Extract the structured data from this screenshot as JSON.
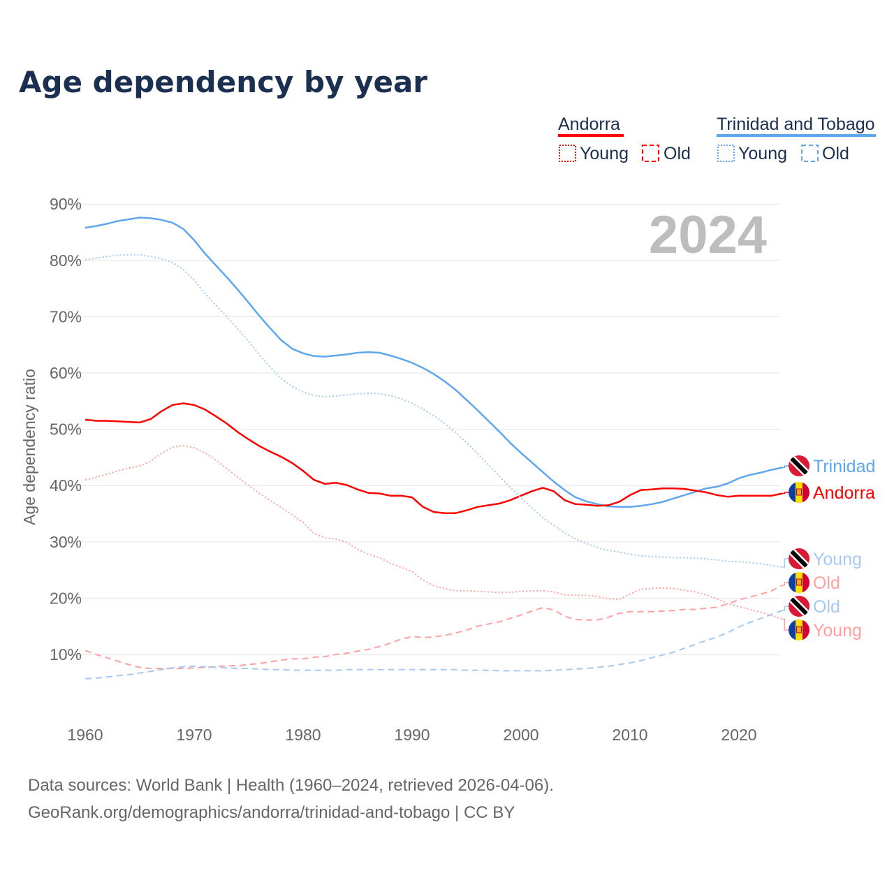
{
  "chart_data": {
    "type": "line",
    "title": "Age dependency by year",
    "ylabel": "Age dependency ratio",
    "xlabel": "",
    "xlim": [
      1960,
      2024
    ],
    "ylim": [
      0,
      90
    ],
    "x_ticks": [
      "1960",
      "1970",
      "1980",
      "1990",
      "2000",
      "2010",
      "2020"
    ],
    "y_ticks": [
      "10%",
      "20%",
      "30%",
      "40%",
      "50%",
      "60%",
      "70%",
      "80%",
      "90%"
    ],
    "y_tick_values": [
      10,
      20,
      30,
      40,
      50,
      60,
      70,
      80,
      90
    ],
    "grid": true,
    "year_watermark": "2024",
    "legend": {
      "placement": "top-right",
      "groups": [
        {
          "country": "Andorra",
          "color": "#ff0000",
          "young": "Young",
          "old": "Old"
        },
        {
          "country": "Trinidad and Tobago",
          "color": "#5fa6ec",
          "young": "Young",
          "old": "Old"
        }
      ]
    },
    "x_start": 1960,
    "series": [
      {
        "name": "Trinidad",
        "key": "tt_total",
        "style": "solid",
        "color": "#5fa6ec",
        "flag": "tt",
        "values": [
          85.8,
          86.1,
          86.5,
          87.0,
          87.3,
          87.6,
          87.5,
          87.2,
          86.7,
          85.6,
          83.6,
          81.2,
          79.1,
          77.0,
          74.8,
          72.5,
          70.1,
          67.9,
          65.8,
          64.3,
          63.5,
          63.0,
          62.9,
          63.1,
          63.3,
          63.6,
          63.7,
          63.6,
          63.1,
          62.5,
          61.8,
          60.9,
          59.8,
          58.5,
          57.0,
          55.2,
          53.4,
          51.5,
          49.6,
          47.6,
          45.8,
          44.1,
          42.4,
          40.7,
          39.2,
          37.9,
          37.2,
          36.7,
          36.3,
          36.2,
          36.2,
          36.4,
          36.7,
          37.1,
          37.7,
          38.3,
          38.9,
          39.5,
          39.8,
          40.4,
          41.3,
          41.9,
          42.3,
          42.8,
          43.2
        ]
      },
      {
        "name": "Andorra",
        "key": "ad_total",
        "style": "solid",
        "color": "#ff0000",
        "flag": "ad",
        "values": [
          51.7,
          51.5,
          51.5,
          51.4,
          51.3,
          51.2,
          51.8,
          53.2,
          54.3,
          54.6,
          54.3,
          53.5,
          52.3,
          51.0,
          49.5,
          48.2,
          47.0,
          46.0,
          45.1,
          44.0,
          42.6,
          41.0,
          40.3,
          40.5,
          40.1,
          39.3,
          38.7,
          38.6,
          38.2,
          38.2,
          37.9,
          36.2,
          35.3,
          35.1,
          35.1,
          35.6,
          36.2,
          36.5,
          36.8,
          37.4,
          38.2,
          39.0,
          39.6,
          39.0,
          37.4,
          36.7,
          36.6,
          36.4,
          36.5,
          37.1,
          38.3,
          39.2,
          39.3,
          39.5,
          39.5,
          39.4,
          39.1,
          38.8,
          38.3,
          38.0,
          38.2,
          38.2,
          38.2,
          38.2,
          38.6
        ]
      },
      {
        "name": "Young",
        "key": "tt_young",
        "style": "dotted",
        "color": "#a5c9f2",
        "flag": "tt",
        "values": [
          80.1,
          80.4,
          80.7,
          80.9,
          81.0,
          81.0,
          80.7,
          80.3,
          79.6,
          78.4,
          76.5,
          74.1,
          72.0,
          70.0,
          67.8,
          65.6,
          63.2,
          61.0,
          59.0,
          57.6,
          56.6,
          56.0,
          55.8,
          55.9,
          56.1,
          56.3,
          56.4,
          56.3,
          56.0,
          55.4,
          54.6,
          53.6,
          52.4,
          51.0,
          49.4,
          47.6,
          45.7,
          43.7,
          41.7,
          39.7,
          37.8,
          36.0,
          34.3,
          32.9,
          31.6,
          30.5,
          29.7,
          29.0,
          28.5,
          28.2,
          27.8,
          27.5,
          27.4,
          27.3,
          27.2,
          27.2,
          27.1,
          27.0,
          26.8,
          26.5,
          26.5,
          26.3,
          26.1,
          25.8,
          25.5
        ]
      },
      {
        "name": "Old",
        "key": "ad_old",
        "style": "dashed",
        "color": "#ffa0a0",
        "flag": "ad",
        "values": [
          10.7,
          10.0,
          9.4,
          8.8,
          8.2,
          7.7,
          7.5,
          7.5,
          7.5,
          7.5,
          7.6,
          7.7,
          7.8,
          8.0,
          8.0,
          8.2,
          8.4,
          8.7,
          9.0,
          9.2,
          9.2,
          9.5,
          9.6,
          10.0,
          10.2,
          10.6,
          10.9,
          11.4,
          12.0,
          12.7,
          13.2,
          13.0,
          13.1,
          13.4,
          13.8,
          14.3,
          15.0,
          15.4,
          15.8,
          16.4,
          17.0,
          17.7,
          18.3,
          17.9,
          16.8,
          16.2,
          16.1,
          16.1,
          16.6,
          17.3,
          17.6,
          17.6,
          17.6,
          17.7,
          17.8,
          18.0,
          18.0,
          18.2,
          18.4,
          19.0,
          19.7,
          20.2,
          20.7,
          21.3,
          22.3
        ]
      },
      {
        "name": "Old",
        "key": "tt_old",
        "style": "dashed",
        "color": "#a5c9f2",
        "flag": "tt",
        "values": [
          5.7,
          5.8,
          6.0,
          6.2,
          6.4,
          6.7,
          7.0,
          7.3,
          7.6,
          7.8,
          7.9,
          7.8,
          7.7,
          7.6,
          7.5,
          7.5,
          7.4,
          7.3,
          7.3,
          7.2,
          7.2,
          7.2,
          7.2,
          7.2,
          7.3,
          7.3,
          7.3,
          7.3,
          7.3,
          7.3,
          7.3,
          7.3,
          7.3,
          7.3,
          7.3,
          7.2,
          7.2,
          7.2,
          7.1,
          7.1,
          7.1,
          7.1,
          7.1,
          7.2,
          7.3,
          7.4,
          7.5,
          7.7,
          7.9,
          8.2,
          8.5,
          8.9,
          9.4,
          9.9,
          10.4,
          11.1,
          11.8,
          12.5,
          13.1,
          13.9,
          14.9,
          15.7,
          16.4,
          17.1,
          17.8
        ]
      },
      {
        "name": "Young",
        "key": "ad_young",
        "style": "dotted",
        "color": "#ffa0a0",
        "flag": "ad",
        "values": [
          41.0,
          41.5,
          42.0,
          42.6,
          43.1,
          43.5,
          44.3,
          45.7,
          46.8,
          47.1,
          46.7,
          45.8,
          44.5,
          43.0,
          41.5,
          40.0,
          38.6,
          37.3,
          36.1,
          34.8,
          33.4,
          31.5,
          30.7,
          30.5,
          29.9,
          28.7,
          27.8,
          27.2,
          26.2,
          25.5,
          24.7,
          23.2,
          22.2,
          21.7,
          21.3,
          21.3,
          21.2,
          21.1,
          21.0,
          21.0,
          21.2,
          21.3,
          21.3,
          21.1,
          20.6,
          20.5,
          20.5,
          20.3,
          19.9,
          19.8,
          20.7,
          21.6,
          21.7,
          21.8,
          21.7,
          21.4,
          21.1,
          20.6,
          19.9,
          19.0,
          18.5,
          18.0,
          17.5,
          16.9,
          16.3
        ]
      }
    ]
  },
  "footer": {
    "source": "Data sources: World Bank | Health (1960–2024, retrieved 2026-04-06).",
    "url": "GeoRank.org/demographics/andorra/trinidad-and-tobago | CC BY"
  }
}
